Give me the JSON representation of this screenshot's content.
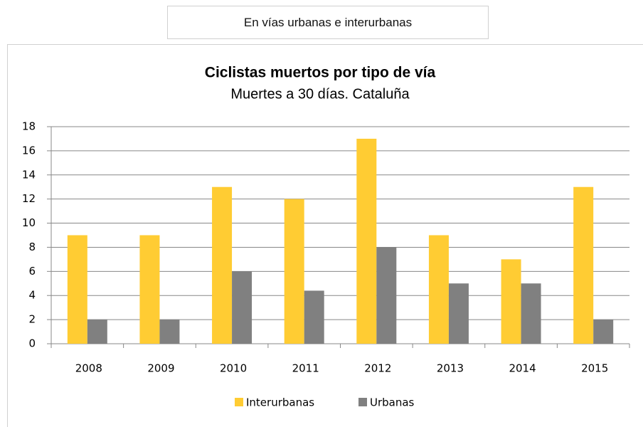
{
  "header": {
    "label": "En vías urbanas e interurbanas"
  },
  "chart_data": {
    "type": "bar",
    "title": "Ciclistas muertos por tipo de vía",
    "subtitle": "Muertes a 30 días. Cataluña",
    "categories": [
      "2008",
      "2009",
      "2010",
      "2011",
      "2012",
      "2013",
      "2014",
      "2015"
    ],
    "series": [
      {
        "name": "Interurbanas",
        "color": "#ffcc33",
        "values": [
          9,
          9,
          13,
          12,
          17,
          9,
          7,
          13
        ]
      },
      {
        "name": "Urbanas",
        "color": "#808080",
        "values": [
          2,
          2,
          6,
          4.4,
          8,
          5,
          5,
          2
        ]
      }
    ],
    "ylim": [
      0,
      18
    ],
    "yticks": [
      0,
      2,
      4,
      6,
      8,
      10,
      12,
      14,
      16,
      18
    ],
    "grid": true,
    "legend": "bottom"
  }
}
